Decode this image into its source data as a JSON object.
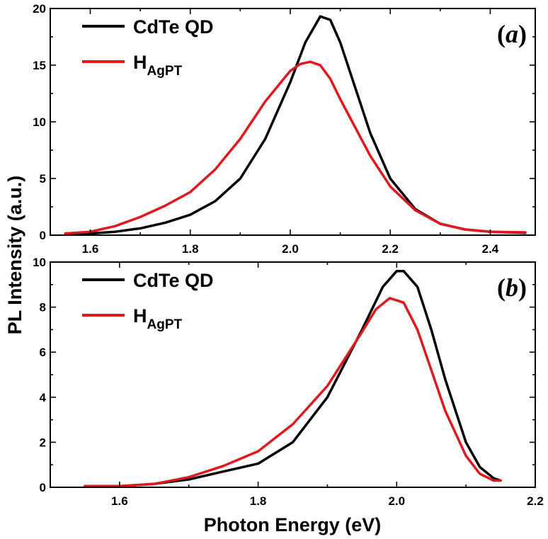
{
  "figure": {
    "ylabel": "PL Intensity (a.u.)",
    "xlabel": "Photon Energy (eV)"
  },
  "chart_data": [
    {
      "type": "line",
      "panel_label": "a",
      "xlim": [
        1.52,
        2.49
      ],
      "ylim": [
        0,
        20
      ],
      "xticks": [
        1.6,
        1.8,
        2.0,
        2.2,
        2.4
      ],
      "xtick_labels": [
        "1.6",
        "1.8",
        "2.0",
        "2.2",
        "2.4"
      ],
      "yticks": [
        0,
        5,
        10,
        15,
        20
      ],
      "ytick_labels": [
        "0",
        "5",
        "10",
        "15",
        "20"
      ],
      "legend_position": "top-left",
      "series": [
        {
          "name": "CdTe QD",
          "legend_main": "CdTe QD",
          "legend_sub": "",
          "color": "#000000",
          "x": [
            1.55,
            1.6,
            1.65,
            1.7,
            1.75,
            1.8,
            1.85,
            1.9,
            1.95,
            2.0,
            2.03,
            2.06,
            2.08,
            2.1,
            2.13,
            2.16,
            2.2,
            2.25,
            2.3,
            2.35,
            2.4,
            2.47
          ],
          "y": [
            0.1,
            0.15,
            0.3,
            0.6,
            1.1,
            1.8,
            3.0,
            5.0,
            8.5,
            13.5,
            17.0,
            19.3,
            19.0,
            17.0,
            13.0,
            9.0,
            5.0,
            2.3,
            1.0,
            0.5,
            0.3,
            0.2
          ]
        },
        {
          "name": "H_AgPT",
          "legend_main": "H",
          "legend_sub": "AgPT",
          "color": "#e0191e",
          "x": [
            1.55,
            1.6,
            1.65,
            1.7,
            1.75,
            1.8,
            1.85,
            1.9,
            1.95,
            2.0,
            2.02,
            2.04,
            2.06,
            2.08,
            2.1,
            2.13,
            2.16,
            2.2,
            2.25,
            2.3,
            2.35,
            2.4,
            2.47
          ],
          "y": [
            0.15,
            0.3,
            0.8,
            1.6,
            2.6,
            3.8,
            5.8,
            8.5,
            11.8,
            14.5,
            15.1,
            15.3,
            15.0,
            13.8,
            12.0,
            9.5,
            7.0,
            4.3,
            2.2,
            1.0,
            0.5,
            0.3,
            0.25
          ]
        }
      ]
    },
    {
      "type": "line",
      "panel_label": "b",
      "xlim": [
        1.5,
        2.2
      ],
      "ylim": [
        0,
        10
      ],
      "xticks": [
        1.6,
        1.8,
        2.0,
        2.2
      ],
      "xtick_labels": [
        "1.6",
        "1.8",
        "2.0",
        "2.2"
      ],
      "yticks": [
        0,
        2,
        4,
        6,
        8,
        10
      ],
      "ytick_labels": [
        "0",
        "2",
        "4",
        "6",
        "8",
        "10"
      ],
      "legend_position": "top-left",
      "series": [
        {
          "name": "CdTe QD",
          "legend_main": "CdTe QD",
          "legend_sub": "",
          "color": "#000000",
          "x": [
            1.55,
            1.6,
            1.65,
            1.7,
            1.75,
            1.8,
            1.85,
            1.9,
            1.95,
            1.98,
            2.0,
            2.01,
            2.03,
            2.05,
            2.07,
            2.1,
            2.12,
            2.14,
            2.15
          ],
          "y": [
            0.05,
            0.05,
            0.15,
            0.35,
            0.7,
            1.05,
            2.0,
            4.0,
            7.0,
            8.9,
            9.6,
            9.6,
            8.9,
            7.0,
            4.8,
            2.0,
            0.9,
            0.4,
            0.3
          ]
        },
        {
          "name": "H_AgPT",
          "legend_main": "H",
          "legend_sub": "AgPT",
          "color": "#e0191e",
          "x": [
            1.55,
            1.6,
            1.65,
            1.7,
            1.75,
            1.8,
            1.85,
            1.9,
            1.95,
            1.97,
            1.99,
            2.01,
            2.03,
            2.05,
            2.07,
            2.1,
            2.12,
            2.14,
            2.15
          ],
          "y": [
            0.05,
            0.05,
            0.15,
            0.45,
            0.95,
            1.6,
            2.8,
            4.5,
            6.9,
            7.9,
            8.4,
            8.2,
            7.0,
            5.2,
            3.4,
            1.4,
            0.6,
            0.3,
            0.3
          ]
        }
      ]
    }
  ]
}
